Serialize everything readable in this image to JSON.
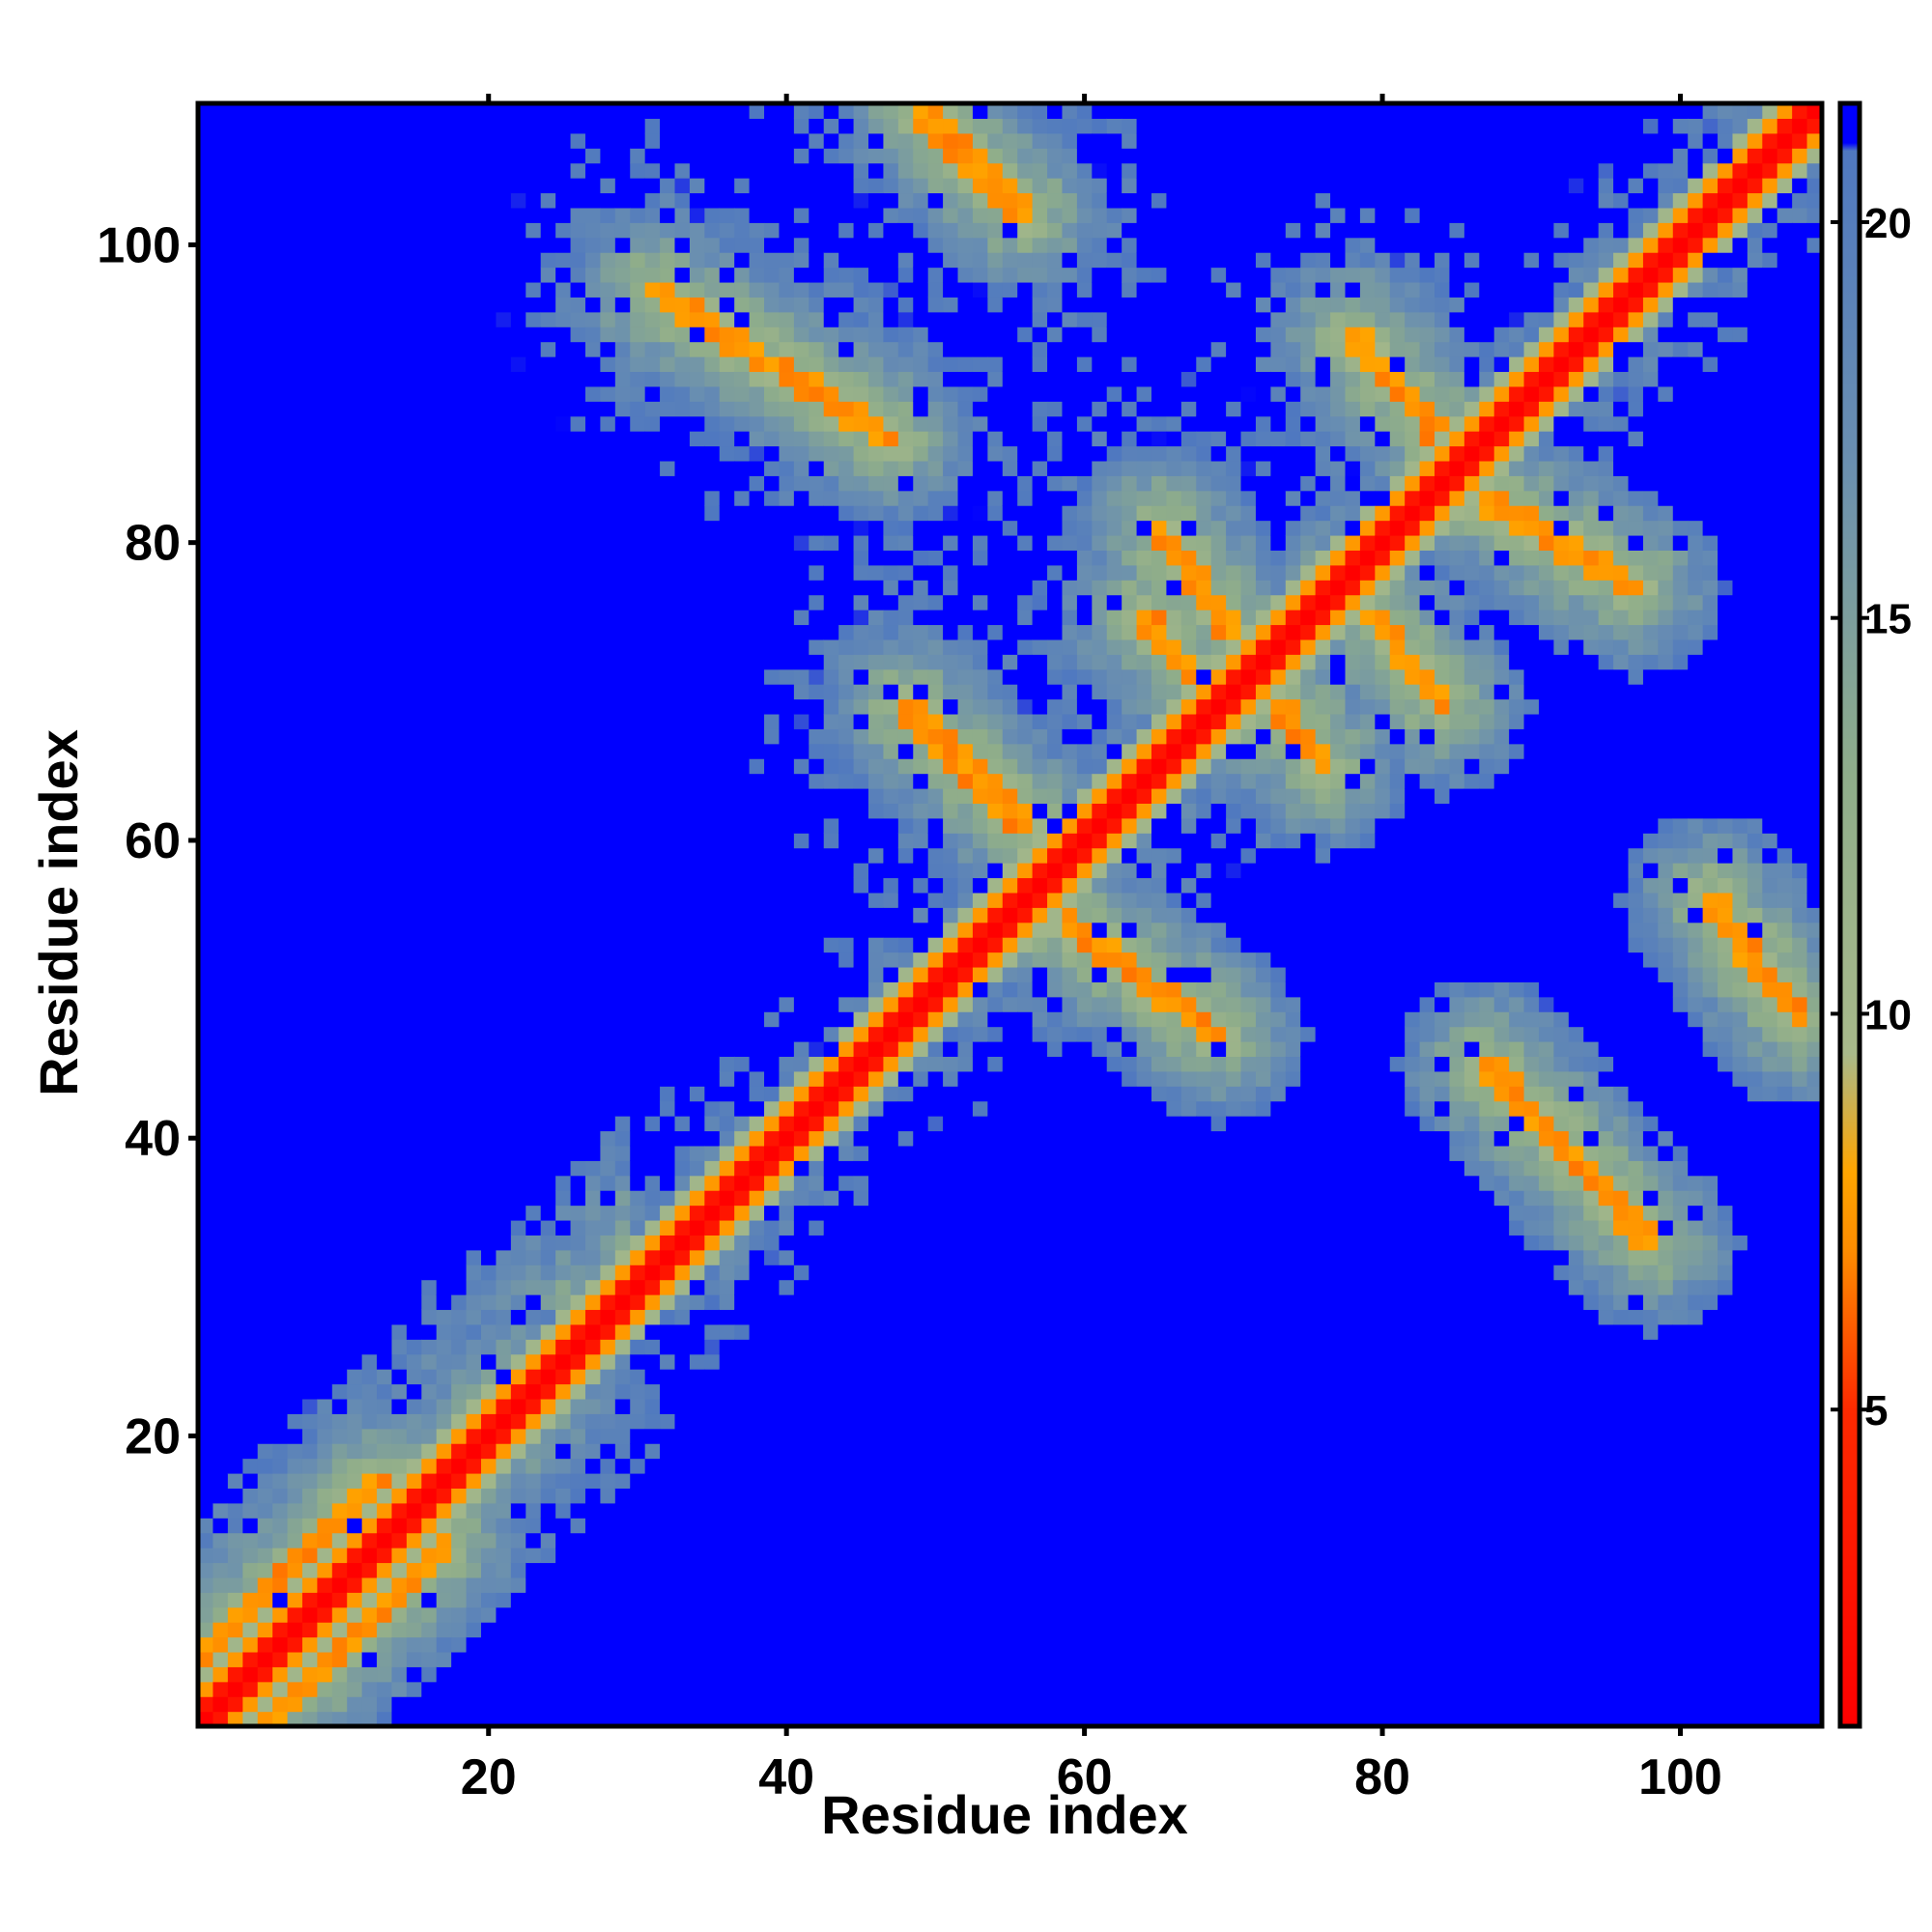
{
  "chart_data": {
    "type": "heatmap",
    "title": "",
    "xlabel": "Residue index",
    "ylabel": "Residue index",
    "n_residues": 109,
    "xlim": [
      1,
      109
    ],
    "ylim": [
      1,
      109
    ],
    "x_ticks": [
      20,
      40,
      60,
      80,
      100
    ],
    "y_ticks": [
      20,
      40,
      60,
      80,
      100
    ],
    "colorbar": {
      "ticks": [
        5,
        10,
        15,
        20
      ],
      "range": [
        1,
        21.5
      ],
      "stops": [
        {
          "value": 1,
          "color": "#ff0000"
        },
        {
          "value": 5,
          "color": "#ff2a00"
        },
        {
          "value": 7,
          "color": "#ff8c00"
        },
        {
          "value": 8,
          "color": "#ffa500"
        },
        {
          "value": 9.5,
          "color": "#a8b98a"
        },
        {
          "value": 13,
          "color": "#8fad8a"
        },
        {
          "value": 17,
          "color": "#6a8fb0"
        },
        {
          "value": 20.9,
          "color": "#4f78c0"
        },
        {
          "value": 21,
          "color": "#0000ff"
        },
        {
          "value": 21.5,
          "color": "#0000ff"
        }
      ]
    },
    "cutoff_color": "#0000ff",
    "description_of_values": "Pairwise residue distance matrix (Å); values above ~21 shown in blue",
    "diagonal_width": 1.5,
    "contact_bands": [
      {
        "x": [
          49,
          56
        ],
        "y": [
          109,
          102
        ]
      },
      {
        "x": [
          31,
          47
        ],
        "y": [
          97,
          87
        ]
      },
      {
        "x": [
          48,
          56
        ],
        "y": [
          69,
          61
        ]
      },
      {
        "x": [
          58,
          69
        ],
        "y": [
          55,
          47
        ]
      },
      {
        "x": [
          64,
          70
        ],
        "y": [
          75,
          68
        ]
      },
      {
        "x": [
          65,
          76
        ],
        "y": [
          81,
          65
        ]
      },
      {
        "x": [
          78,
          84
        ],
        "y": [
          94,
          87
        ]
      },
      {
        "x": [
          85,
          97
        ],
        "y": [
          84,
          77
        ]
      },
      {
        "x": [
          78,
          84
        ],
        "y": [
          77,
          69
        ]
      },
      {
        "x": [
          87,
          98
        ],
        "y": [
          45,
          33
        ]
      },
      {
        "x": [
          102,
          108
        ],
        "y": [
          56,
          48
        ]
      },
      {
        "x": [
          1,
          13
        ],
        "y": [
          5,
          17
        ]
      },
      {
        "x": [
          5,
          17
        ],
        "y": [
          1,
          13
        ]
      },
      {
        "x": [
          16,
          23
        ],
        "y": [
          16,
          23
        ]
      }
    ]
  }
}
